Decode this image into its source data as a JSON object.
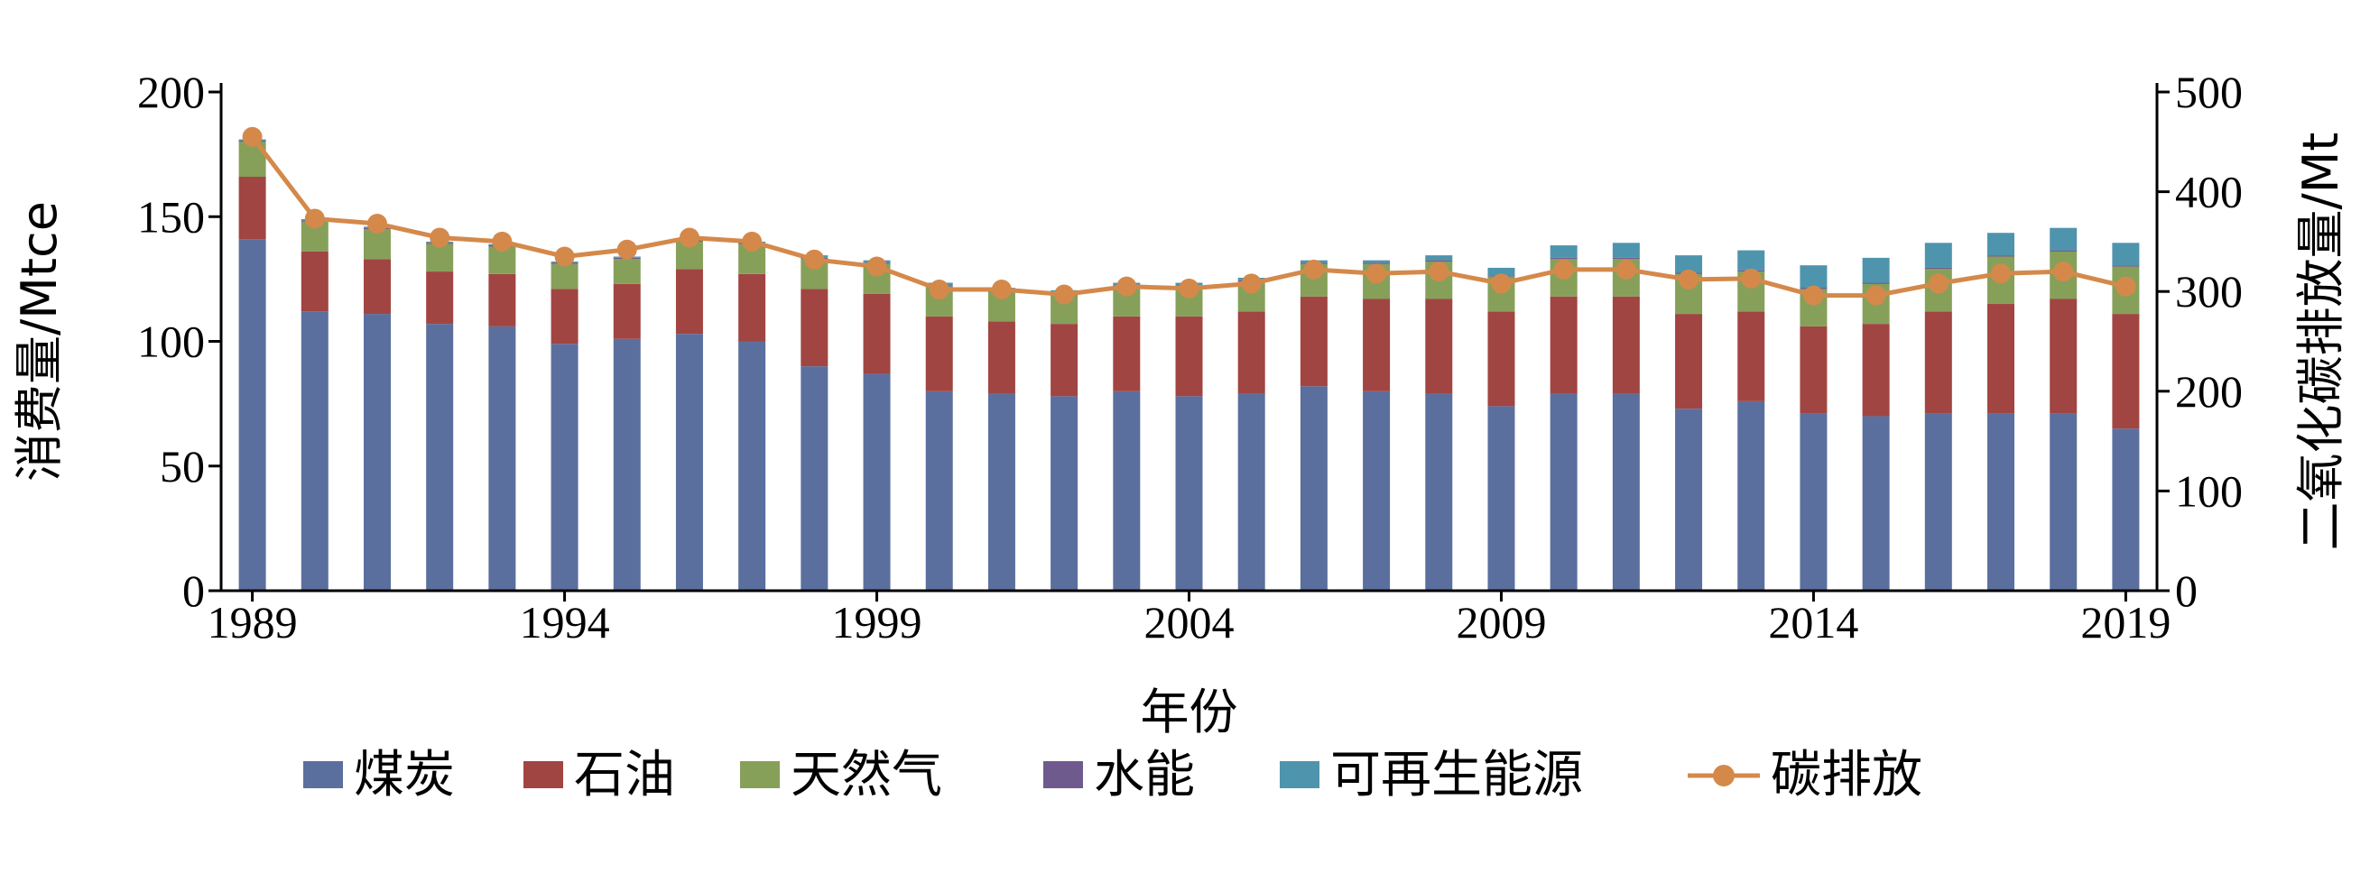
{
  "chart_data": {
    "type": "bar",
    "stacked": true,
    "categories": [
      "1989",
      "1990",
      "1991",
      "1992",
      "1993",
      "1994",
      "1995",
      "1996",
      "1997",
      "1998",
      "1999",
      "2000",
      "2001",
      "2002",
      "2003",
      "2004",
      "2005",
      "2006",
      "2007",
      "2008",
      "2009",
      "2010",
      "2011",
      "2012",
      "2013",
      "2014",
      "2015",
      "2016",
      "2017",
      "2018",
      "2019"
    ],
    "x_tick_labels": [
      "1989",
      "1994",
      "1999",
      "2004",
      "2009",
      "2014",
      "2019"
    ],
    "xlabel": "年份",
    "ylabel": "消费量/Mtce",
    "y2label": "二氧化碳排放量/Mt",
    "ylim": [
      0,
      200
    ],
    "y_ticks": [
      0,
      50,
      100,
      150,
      200
    ],
    "y2lim": [
      0,
      500
    ],
    "y2_ticks": [
      0,
      100,
      200,
      300,
      400,
      500
    ],
    "grid": false,
    "legend_position": "bottom",
    "series": [
      {
        "name": "煤炭",
        "color": "#5b6f9e",
        "axis": "left",
        "values": [
          141,
          112,
          111,
          107,
          106,
          99,
          101,
          103,
          100,
          90,
          87,
          80,
          79,
          78,
          80,
          78,
          79,
          82,
          80,
          79,
          74,
          79,
          79,
          73,
          76,
          71,
          70,
          71,
          71,
          71,
          65
        ]
      },
      {
        "name": "石油",
        "color": "#a14542",
        "axis": "left",
        "values": [
          25,
          24,
          22,
          21,
          21,
          22,
          22,
          26,
          27,
          31,
          32,
          30,
          29,
          29,
          30,
          32,
          33,
          36,
          37,
          38,
          38,
          39,
          39,
          38,
          36,
          35,
          37,
          41,
          44,
          46,
          46
        ]
      },
      {
        "name": "天然气",
        "color": "#86a05a",
        "axis": "left",
        "values": [
          14,
          12,
          12,
          11,
          11,
          10,
          10,
          11,
          12,
          12,
          12,
          12,
          12,
          12,
          12,
          12,
          12,
          13,
          14,
          15,
          14,
          15,
          15,
          16,
          16,
          15,
          16,
          17,
          19,
          19,
          19
        ]
      },
      {
        "name": "水能",
        "color": "#6f5a8e",
        "axis": "left",
        "values": [
          0.5,
          0.5,
          0.5,
          0.5,
          0.5,
          0.5,
          0.5,
          0.5,
          0.5,
          0.5,
          0.5,
          0.5,
          0.5,
          0.5,
          0.5,
          0.5,
          0.5,
          0.5,
          0.5,
          0.5,
          0.5,
          0.5,
          0.5,
          0.5,
          0.5,
          0.5,
          0.5,
          0.5,
          0.5,
          0.5,
          0.5
        ]
      },
      {
        "name": "可再生能源",
        "color": "#4f94ad",
        "axis": "left",
        "values": [
          0.5,
          0.5,
          0.5,
          0.5,
          0.5,
          0.5,
          0.5,
          0.5,
          0.5,
          1,
          1,
          1,
          1,
          1,
          1,
          1,
          1,
          1,
          1,
          2,
          3,
          5,
          6,
          7,
          8,
          9,
          10,
          10,
          9,
          9,
          9
        ]
      },
      {
        "name": "碳排放",
        "color": "#d4894a",
        "axis": "right",
        "type": "line",
        "values": [
          455,
          373,
          368,
          354,
          350,
          335,
          342,
          354,
          350,
          332,
          325,
          302,
          302,
          297,
          305,
          303,
          308,
          322,
          318,
          320,
          308,
          322,
          322,
          312,
          313,
          296,
          296,
          308,
          318,
          320,
          305
        ]
      }
    ]
  }
}
